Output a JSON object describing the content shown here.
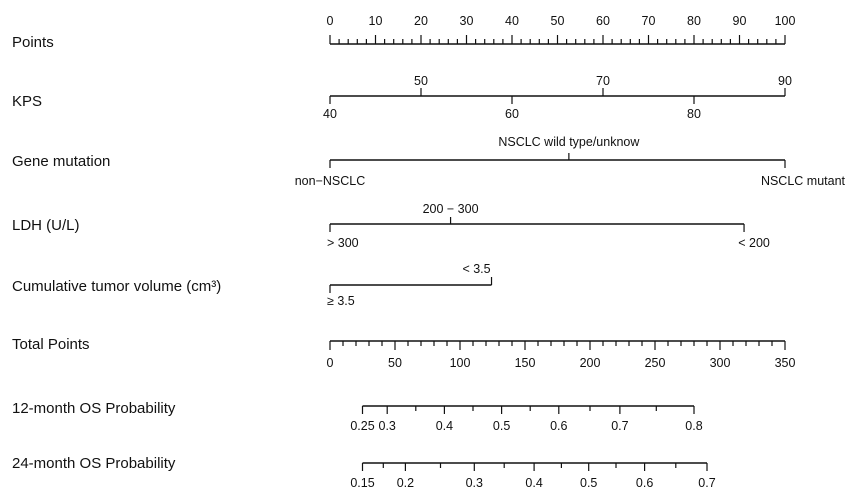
{
  "chart_data": {
    "type": "nomogram",
    "rows": [
      {
        "id": "points",
        "label": "Points",
        "kind": "numeric",
        "range": [
          0,
          100
        ],
        "major_ticks": [
          0,
          10,
          20,
          30,
          40,
          50,
          60,
          70,
          80,
          90,
          100
        ],
        "minor_step": 2,
        "points_range": [
          0,
          100
        ]
      },
      {
        "id": "kps",
        "label": "KPS",
        "kind": "numeric",
        "range": [
          40,
          90
        ],
        "major_ticks": [
          40,
          50,
          60,
          70,
          80,
          90
        ],
        "points_range": [
          0,
          100
        ]
      },
      {
        "id": "gene-mutation",
        "label": "Gene mutation",
        "kind": "categorical",
        "levels": [
          {
            "label": "non−NSCLC",
            "points": 0
          },
          {
            "label": "NSCLC wild type/unknow",
            "points": 52.5
          },
          {
            "label": "NSCLC mutant",
            "points": 100
          }
        ]
      },
      {
        "id": "ldh",
        "label": "LDH (U/L)",
        "kind": "categorical",
        "levels": [
          {
            "label": "> 300",
            "points": 0
          },
          {
            "label": "200 − 300",
            "points": 26.5
          },
          {
            "label": "< 200",
            "points": 91
          }
        ]
      },
      {
        "id": "tumor-volume",
        "label": "Cumulative tumor volume (cm³)",
        "kind": "categorical",
        "levels": [
          {
            "label": "≥ 3.5",
            "points": 0
          },
          {
            "label": "< 3.5",
            "points": 35.5
          }
        ]
      },
      {
        "id": "total-points",
        "label": "Total Points",
        "kind": "numeric",
        "range": [
          0,
          350
        ],
        "major_ticks": [
          0,
          50,
          100,
          150,
          200,
          250,
          300,
          350
        ],
        "minor_step": 10,
        "points_range": [
          0,
          100
        ]
      },
      {
        "id": "os-12",
        "label": "12-month OS Probability",
        "kind": "probability",
        "ticks": [
          {
            "value": 0.25,
            "total_points": 25
          },
          {
            "value": 0.3,
            "total_points": 44
          },
          {
            "value": 0.4,
            "total_points": 88
          },
          {
            "value": 0.5,
            "total_points": 132
          },
          {
            "value": 0.6,
            "total_points": 176
          },
          {
            "value": 0.7,
            "total_points": 223
          },
          {
            "value": 0.8,
            "total_points": 280
          }
        ],
        "minor_ticks_total_points": [
          66,
          110,
          154,
          200,
          251
        ]
      },
      {
        "id": "os-24",
        "label": "24-month OS Probability",
        "kind": "probability",
        "ticks": [
          {
            "value": 0.15,
            "total_points": 25
          },
          {
            "value": 0.2,
            "total_points": 58
          },
          {
            "value": 0.3,
            "total_points": 111
          },
          {
            "value": 0.4,
            "total_points": 157
          },
          {
            "value": 0.5,
            "total_points": 199
          },
          {
            "value": 0.6,
            "total_points": 242
          },
          {
            "value": 0.7,
            "total_points": 290
          }
        ],
        "minor_ticks_total_points": [
          41,
          85,
          134,
          178,
          220,
          266
        ]
      }
    ]
  }
}
